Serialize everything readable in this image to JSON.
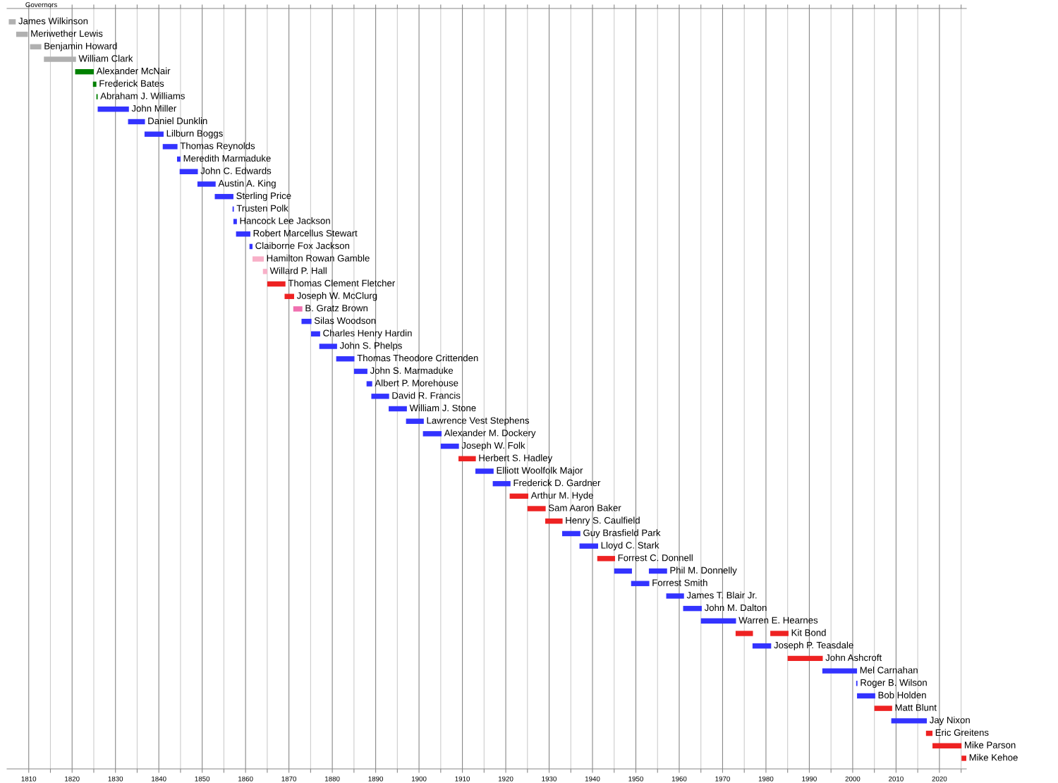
{
  "chart_data": {
    "type": "bar",
    "orientation": "horizontal",
    "title": "Governors",
    "categories": [
      "James Wilkinson",
      "Meriwether Lewis",
      "Benjamin Howard",
      "William Clark",
      "Alexander McNair",
      "Frederick Bates",
      "Abraham J. Williams",
      "John Miller",
      "Daniel Dunklin",
      "Lilburn Boggs",
      "Thomas Reynolds",
      "Meredith Marmaduke",
      "John C. Edwards",
      "Austin A. King",
      "Sterling Price",
      "Trusten Polk",
      "Hancock Lee Jackson",
      "Robert Marcellus Stewart",
      "Claiborne Fox Jackson",
      "Hamilton Rowan Gamble",
      "Willard P. Hall",
      "Thomas Clement Fletcher",
      "Joseph W. McClurg",
      "B. Gratz Brown",
      "Silas Woodson",
      "Charles Henry Hardin",
      "John S. Phelps",
      "Thomas Theodore Crittenden",
      "John S. Marmaduke",
      "Albert P. Morehouse",
      "David R. Francis",
      "William J. Stone",
      "Lawrence Vest Stephens",
      "Alexander M. Dockery",
      "Joseph W. Folk",
      "Herbert S. Hadley",
      "Elliott Woolfolk Major",
      "Frederick D. Gardner",
      "Arthur M. Hyde",
      "Sam Aaron Baker",
      "Henry S. Caulfield",
      "Guy Brasfield Park",
      "Lloyd C. Stark",
      "Forrest C. Donnell",
      "Phil M. Donnelly",
      "Forrest Smith",
      "James T. Blair Jr.",
      "John M. Dalton",
      "Warren E. Hearnes",
      "Kit Bond",
      "Joseph P. Teasdale",
      "John Ashcroft",
      "Mel Carnahan",
      "Roger B. Wilson",
      "Bob Holden",
      "Matt Blunt",
      "Jay Nixon",
      "Eric Greitens",
      "Mike Parson",
      "Mike Kehoe"
    ],
    "series": [
      {
        "base": [
          1805.4,
          1807.1,
          1810.3,
          1813.5,
          1820.7,
          1824.8,
          1825.6,
          1825.9,
          1832.9,
          1836.7,
          1840.9,
          1844.2,
          1844.8,
          1848.9,
          1852.9,
          1857.0,
          1857.2,
          1857.8,
          1860.9,
          1861.6,
          1864.0,
          1865.0,
          1869.0,
          1871.0,
          1872.9,
          1875.1,
          1877.0,
          1880.9,
          1885.0,
          1887.9,
          1889.0,
          1893.0,
          1897.0,
          1900.9,
          1905.0,
          1909.1,
          1913.0,
          1917.0,
          1920.9,
          1925.0,
          1929.1,
          1933.0,
          1937.0,
          1941.1,
          1945.0,
          1948.9,
          1957.0,
          1960.9,
          1965.0,
          1973.0,
          1976.9,
          1985.0,
          1993.0,
          2000.8,
          2001.0,
          2005.0,
          2008.9,
          2016.9,
          2018.4,
          2025.1
        ],
        "values": [
          1.6,
          2.7,
          2.6,
          7.4,
          4.3,
          0.8,
          0.3,
          7.2,
          3.9,
          4.4,
          3.4,
          0.8,
          4.2,
          4.2,
          4.3,
          0.3,
          0.8,
          3.3,
          0.7,
          2.6,
          1.0,
          4.2,
          2.2,
          2.1,
          2.3,
          2.1,
          4.1,
          4.2,
          3.1,
          1.3,
          4.1,
          4.2,
          4.1,
          4.3,
          4.2,
          4.0,
          4.2,
          4.1,
          4.3,
          4.2,
          4.0,
          4.2,
          4.3,
          4.1,
          4.1,
          4.2,
          4.1,
          4.3,
          8.1,
          4.0,
          4.3,
          8.1,
          8.0,
          0.3,
          4.2,
          4.1,
          8.2,
          1.5,
          6.7,
          1.1
        ],
        "colors": [
          "#b0b0b0",
          "#b0b0b0",
          "#b0b0b0",
          "#b0b0b0",
          "#008000",
          "#008000",
          "#008000",
          "#3333ff",
          "#3333ff",
          "#3333ff",
          "#3333ff",
          "#3333ff",
          "#3333ff",
          "#3333ff",
          "#3333ff",
          "#3333ff",
          "#3333ff",
          "#3333ff",
          "#3333ff",
          "#f8b0c8",
          "#f8b0c8",
          "#ee2222",
          "#ee2222",
          "#f070b0",
          "#3333ff",
          "#3333ff",
          "#3333ff",
          "#3333ff",
          "#3333ff",
          "#3333ff",
          "#3333ff",
          "#3333ff",
          "#3333ff",
          "#3333ff",
          "#3333ff",
          "#ee2222",
          "#3333ff",
          "#3333ff",
          "#ee2222",
          "#ee2222",
          "#ee2222",
          "#3333ff",
          "#3333ff",
          "#ee2222",
          "#3333ff",
          "#3333ff",
          "#3333ff",
          "#3333ff",
          "#3333ff",
          "#ee2222",
          "#3333ff",
          "#ee2222",
          "#3333ff",
          "#3333ff",
          "#3333ff",
          "#ee2222",
          "#3333ff",
          "#ee2222",
          "#ee2222",
          "#ee2222"
        ]
      },
      {
        "base": [
          null,
          null,
          null,
          null,
          null,
          null,
          null,
          null,
          null,
          null,
          null,
          null,
          null,
          null,
          null,
          null,
          null,
          null,
          null,
          null,
          null,
          null,
          null,
          null,
          null,
          null,
          null,
          null,
          null,
          null,
          null,
          null,
          null,
          null,
          null,
          null,
          null,
          null,
          null,
          null,
          null,
          null,
          null,
          null,
          1953.0,
          null,
          null,
          null,
          null,
          1981.0,
          null,
          null,
          null,
          null,
          null,
          null,
          null,
          null,
          null,
          null
        ],
        "values": [
          null,
          null,
          null,
          null,
          null,
          null,
          null,
          null,
          null,
          null,
          null,
          null,
          null,
          null,
          null,
          null,
          null,
          null,
          null,
          null,
          null,
          null,
          null,
          null,
          null,
          null,
          null,
          null,
          null,
          null,
          null,
          null,
          null,
          null,
          null,
          null,
          null,
          null,
          null,
          null,
          null,
          null,
          null,
          null,
          4.2,
          null,
          null,
          null,
          null,
          4.2,
          null,
          null,
          null,
          null,
          null,
          null,
          null,
          null,
          null,
          null
        ],
        "colors": [
          null,
          null,
          null,
          null,
          null,
          null,
          null,
          null,
          null,
          null,
          null,
          null,
          null,
          null,
          null,
          null,
          null,
          null,
          null,
          null,
          null,
          null,
          null,
          null,
          null,
          null,
          null,
          null,
          null,
          null,
          null,
          null,
          null,
          null,
          null,
          null,
          null,
          null,
          null,
          null,
          null,
          null,
          null,
          null,
          "#3333ff",
          null,
          null,
          null,
          null,
          "#ee2222",
          null,
          null,
          null,
          null,
          null,
          null,
          null,
          null,
          null,
          null
        ]
      }
    ],
    "xlim": [
      1805,
      2026.2
    ],
    "xticks": [
      1810,
      {
        "value": 1815,
        "label": null
      },
      1820,
      {
        "value": 1825,
        "label": null
      },
      1830,
      {
        "value": 1835,
        "label": null
      },
      1840,
      {
        "value": 1845,
        "label": null
      },
      1850,
      {
        "value": 1855,
        "label": null
      },
      1860,
      {
        "value": 1865,
        "label": null
      },
      1870,
      {
        "value": 1875,
        "label": null
      },
      1880,
      {
        "value": 1885,
        "label": null
      },
      1890,
      {
        "value": 1895,
        "label": null
      },
      1900,
      {
        "value": 1905,
        "label": null
      },
      1910,
      {
        "value": 1915,
        "label": null
      },
      1920,
      {
        "value": 1925,
        "label": null
      },
      1930,
      {
        "value": 1935,
        "label": null
      },
      1940,
      {
        "value": 1945,
        "label": null
      },
      1950,
      {
        "value": 1955,
        "label": null
      },
      1960,
      {
        "value": 1965,
        "label": null
      },
      1970,
      {
        "value": 1975,
        "label": null
      },
      1980,
      {
        "value": 1985,
        "label": null
      },
      1990,
      {
        "value": 1995,
        "label": null
      },
      2000,
      {
        "value": 2005,
        "label": null
      },
      2010,
      {
        "value": 2015,
        "label": null
      },
      2020,
      {
        "value": 2025,
        "label": null
      }
    ],
    "grid": "x",
    "legend": false,
    "tick_labels": "x"
  }
}
